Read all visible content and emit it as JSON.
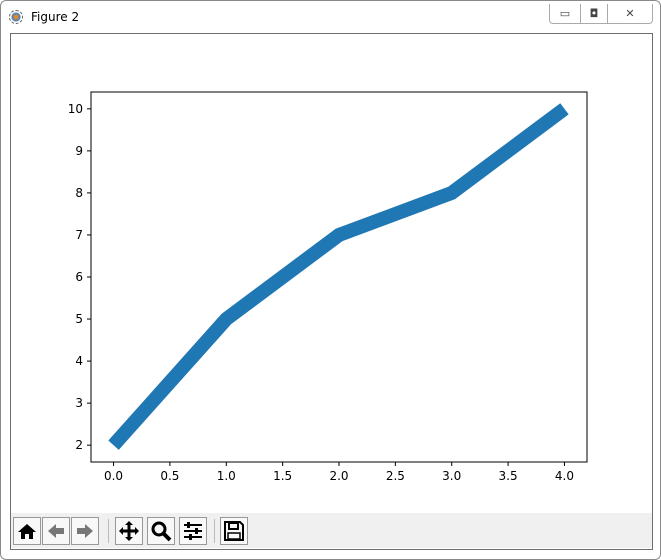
{
  "window": {
    "title": "Figure 2",
    "controls": [
      "minimize",
      "restore",
      "close"
    ]
  },
  "toolbar": {
    "buttons": [
      {
        "name": "home",
        "icon": "home-icon"
      },
      {
        "name": "back",
        "icon": "arrow-left-icon"
      },
      {
        "name": "forward",
        "icon": "arrow-right-icon"
      },
      {
        "name": "pan",
        "icon": "move-icon"
      },
      {
        "name": "zoom",
        "icon": "magnifier-icon"
      },
      {
        "name": "configure-subplots",
        "icon": "sliders-icon"
      },
      {
        "name": "save",
        "icon": "floppy-disk-icon"
      }
    ]
  },
  "chart_data": {
    "type": "line",
    "x": [
      0,
      1,
      2,
      3,
      4
    ],
    "series": [
      {
        "values": [
          2,
          5,
          7,
          8,
          10
        ],
        "color": "#1f77b4"
      }
    ],
    "xlim": [
      -0.2,
      4.2
    ],
    "ylim": [
      1.6,
      10.4
    ],
    "xticks": [
      "0.0",
      "0.5",
      "1.0",
      "1.5",
      "2.0",
      "2.5",
      "3.0",
      "3.5",
      "4.0"
    ],
    "yticks": [
      "2",
      "3",
      "4",
      "5",
      "6",
      "7",
      "8",
      "9",
      "10"
    ],
    "title": "",
    "xlabel": "",
    "ylabel": "",
    "grid": false
  }
}
